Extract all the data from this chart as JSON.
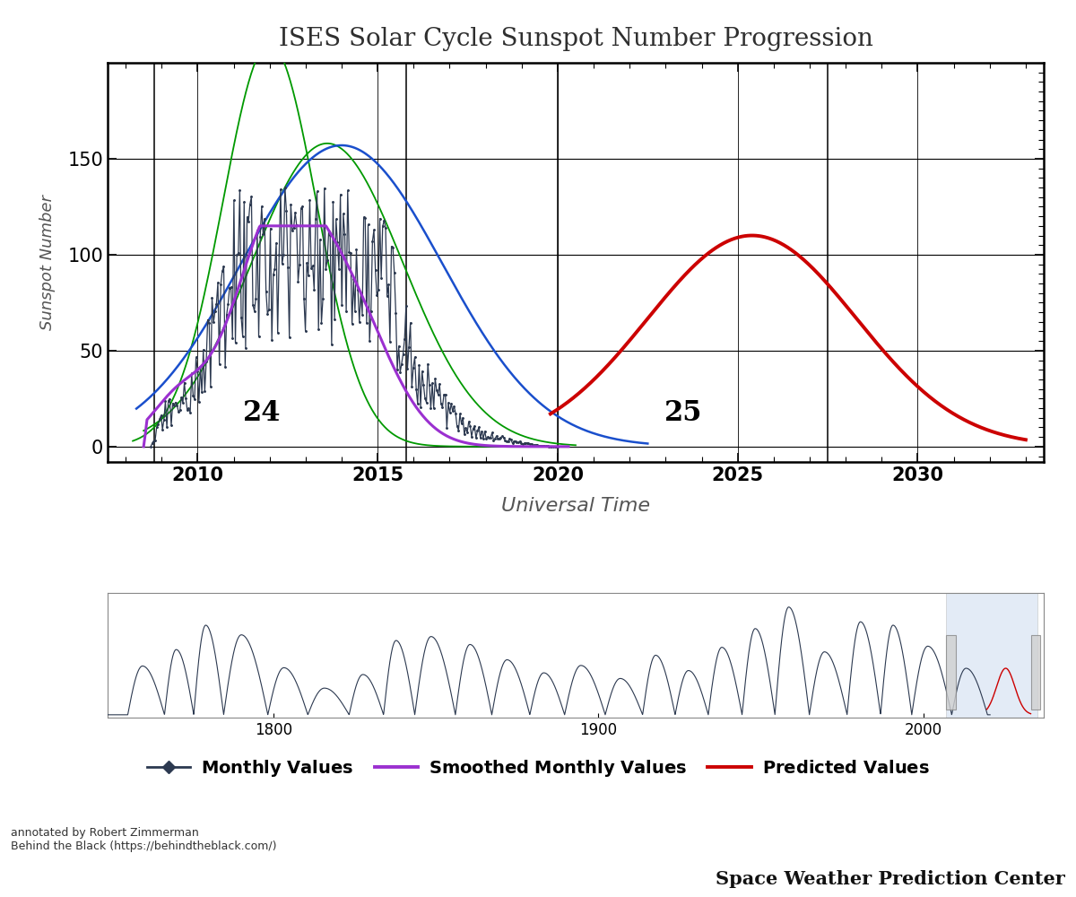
{
  "title": "ISES Solar Cycle Sunspot Number Progression",
  "xlabel": "Universal Time",
  "ylabel": "Sunspot Number",
  "cycle24_label": "24",
  "cycle25_label": "25",
  "xlim": [
    2007.5,
    2033.5
  ],
  "ylim": [
    -8,
    200
  ],
  "yticks": [
    0,
    50,
    100,
    150
  ],
  "xticks": [
    2010,
    2015,
    2020,
    2025,
    2030
  ],
  "bg_color": "#ffffff",
  "plot_bg_color": "#ffffff",
  "title_color": "#2f2f2f",
  "axis_label_color": "#555555",
  "monthly_color": "#2c3950",
  "smoothed_color": "#9b30d0",
  "blue_smoothed_color": "#1a4fcc",
  "predicted_color": "#cc0000",
  "green_color": "#009900",
  "annotation_text1": "annotated by Robert Zimmerman",
  "annotation_text2": "Behind the Black (https://behindtheblack.com/)",
  "swpc_text": "Space Weather Prediction Center"
}
